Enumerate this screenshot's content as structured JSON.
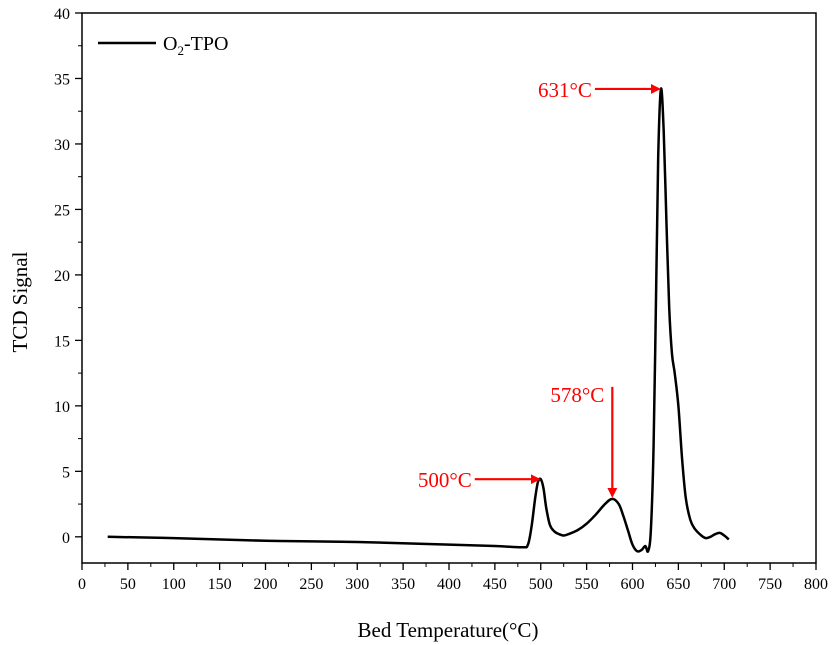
{
  "chart_data": {
    "type": "line",
    "xlabel": "Bed Temperature(°C)",
    "ylabel": "TCD Signal",
    "xlim": [
      0,
      800
    ],
    "ylim": [
      -2,
      40
    ],
    "xticks": [
      0,
      50,
      100,
      150,
      200,
      250,
      300,
      350,
      400,
      450,
      500,
      550,
      600,
      650,
      700,
      750,
      800
    ],
    "yticks": [
      0,
      5,
      10,
      15,
      20,
      25,
      30,
      35,
      40
    ],
    "grid": false,
    "legend_position": "top-left",
    "series": [
      {
        "name": "O2-TPO",
        "legend_main": "O",
        "legend_sub": "2",
        "legend_rest": "-TPO",
        "color": "#000000",
        "x": [
          28,
          100,
          200,
          300,
          400,
          450,
          480,
          486,
          490,
          494,
          497,
          500,
          503,
          506,
          510,
          515,
          520,
          525,
          530,
          540,
          550,
          560,
          570,
          578,
          585,
          590,
          595,
          600,
          605,
          610,
          614,
          617,
          620,
          623,
          626,
          628,
          631,
          634,
          637,
          640,
          643,
          646,
          650,
          654,
          658,
          663,
          668,
          675,
          680,
          685,
          690,
          695,
          700,
          705
        ],
        "y": [
          0.0,
          -0.1,
          -0.3,
          -0.4,
          -0.6,
          -0.7,
          -0.8,
          -0.6,
          0.8,
          3.0,
          4.2,
          4.4,
          3.7,
          2.2,
          0.9,
          0.4,
          0.2,
          0.1,
          0.2,
          0.5,
          1.0,
          1.7,
          2.5,
          2.9,
          2.5,
          1.6,
          0.5,
          -0.6,
          -1.1,
          -1.0,
          -0.7,
          -1.1,
          0.5,
          7.0,
          20.0,
          29.0,
          34.2,
          31.0,
          24.0,
          17.5,
          14.0,
          12.5,
          10.0,
          6.0,
          3.0,
          1.3,
          0.6,
          0.1,
          -0.1,
          0.0,
          0.2,
          0.3,
          0.1,
          -0.2
        ]
      }
    ],
    "annotations": [
      {
        "text": "500°C",
        "x": 500,
        "y": 4.4,
        "direction": "from-left",
        "color": "#ff0000"
      },
      {
        "text": "578°C",
        "x": 578,
        "y": 2.9,
        "direction": "from-above",
        "color": "#ff0000"
      },
      {
        "text": "631°C",
        "x": 631,
        "y": 34.2,
        "direction": "from-left",
        "color": "#ff0000"
      }
    ]
  }
}
